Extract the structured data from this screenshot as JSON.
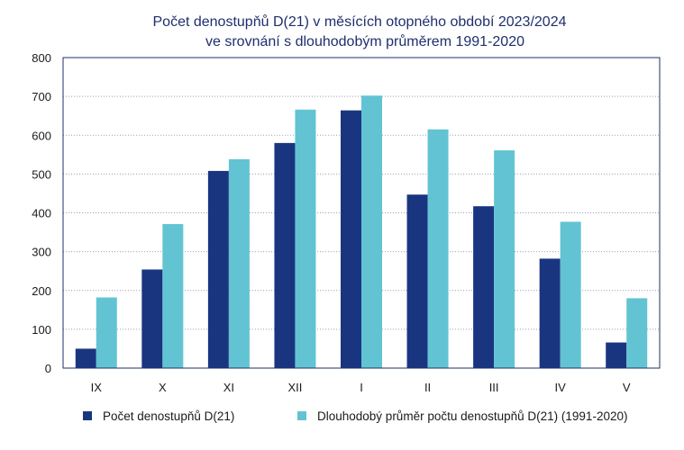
{
  "chart_data": {
    "type": "bar",
    "title_line1": "Počet denostupňů D(21) v měsících otopného období 2023/2024",
    "title_line2": "ve srovnání s dlouhodobým průměrem 1991-2020",
    "categories": [
      "IX",
      "X",
      "XI",
      "XII",
      "I",
      "II",
      "III",
      "IV",
      "V"
    ],
    "series": [
      {
        "name": "Počet denostupňů D(21)",
        "color": "#1a3580",
        "values": [
          50,
          254,
          508,
          580,
          664,
          447,
          417,
          282,
          66
        ]
      },
      {
        "name": "Dlouhodobý průměr počtu denostupňů D(21) (1991-2020)",
        "color": "#62c3d3",
        "values": [
          182,
          371,
          538,
          666,
          702,
          615,
          561,
          377,
          180
        ]
      }
    ],
    "ylim": [
      0,
      800
    ],
    "yticks": [
      0,
      100,
      200,
      300,
      400,
      500,
      600,
      700,
      800
    ],
    "grid": true,
    "legend_position": "bottom"
  }
}
